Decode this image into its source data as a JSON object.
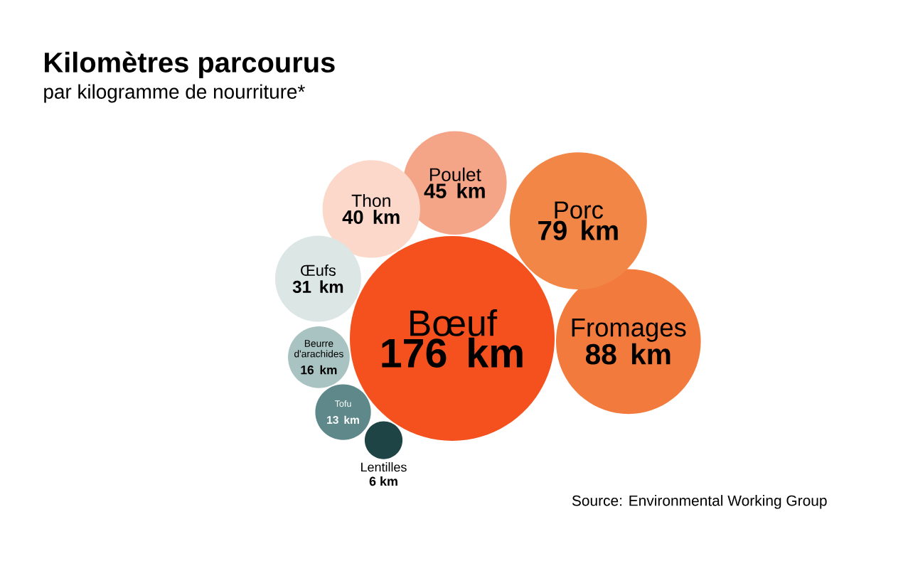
{
  "chart_data": {
    "type": "other",
    "title": "Kilomètres parcourus",
    "subtitle": "par kilogramme de nourriture*",
    "categories": [
      "Bœuf",
      "Fromages",
      "Porc",
      "Poulet",
      "Thon",
      "Œufs",
      "Beurre d'arachides",
      "Tofu",
      "Lentilles"
    ],
    "values": [
      176,
      88,
      79,
      45,
      40,
      31,
      16,
      13,
      6
    ],
    "value_labels": [
      "176 km",
      "88 km",
      "79 km",
      "45 km",
      "40 km",
      "31 km",
      "16 km",
      "13 km",
      "6 km"
    ],
    "colors": [
      "#f4511e",
      "#f27a3c",
      "#f28646",
      "#f4a487",
      "#fbd8ca",
      "#dce6e5",
      "#a8c3c1",
      "#5e8889",
      "#1f4446"
    ],
    "annotations": [
      "Source: Environmental Working Group"
    ]
  }
}
